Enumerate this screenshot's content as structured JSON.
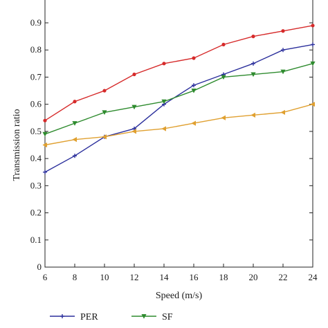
{
  "chart_data": {
    "type": "line",
    "xlabel": "Speed (m/s)",
    "ylabel": "Transmission ratio",
    "x": [
      6,
      8,
      10,
      12,
      14,
      16,
      18,
      20,
      22,
      24
    ],
    "xlim": [
      6,
      24
    ],
    "ylim": [
      0,
      0.9
    ],
    "xticks": [
      "6",
      "8",
      "10",
      "12",
      "14",
      "16",
      "18",
      "20",
      "22",
      "24"
    ],
    "yticks": [
      "0",
      "0.1",
      "0.2",
      "0.3",
      "0.4",
      "0.5",
      "0.6",
      "0.7",
      "0.8",
      "0.9"
    ],
    "grid": false,
    "legend_position": "bottom",
    "series": [
      {
        "name": "PER",
        "color": "#2b2f9c",
        "marker": "plus",
        "values": [
          0.35,
          0.41,
          0.48,
          0.51,
          0.6,
          0.67,
          0.71,
          0.75,
          0.8,
          0.82
        ]
      },
      {
        "name": "SF",
        "color": "#2e8b2e",
        "marker": "triangle-down",
        "values": [
          0.49,
          0.53,
          0.57,
          0.59,
          0.61,
          0.65,
          0.7,
          0.71,
          0.72,
          0.75
        ]
      },
      {
        "name": "",
        "color": "#d62a2a",
        "marker": "circle",
        "values": [
          0.54,
          0.61,
          0.65,
          0.71,
          0.75,
          0.77,
          0.82,
          0.85,
          0.87,
          0.89
        ]
      },
      {
        "name": "",
        "color": "#e0a030",
        "marker": "triangle-left",
        "values": [
          0.45,
          0.47,
          0.48,
          0.5,
          0.51,
          0.53,
          0.55,
          0.56,
          0.57,
          0.6
        ]
      }
    ]
  }
}
